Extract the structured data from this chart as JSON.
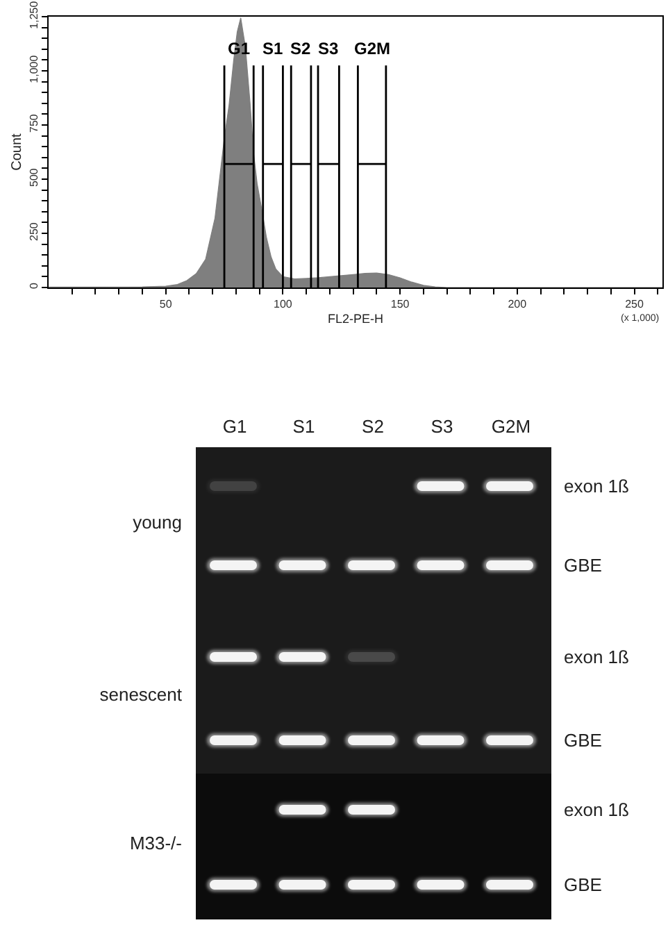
{
  "chart_data": [
    {
      "type": "area",
      "xlabel": "FL2-PE-H",
      "ylabel": "Count",
      "annotations": [
        "(x 1,000)"
      ],
      "xlim": [
        0,
        262
      ],
      "xticks": [
        {
          "value": 10,
          "label": null
        },
        {
          "value": 20,
          "label": null
        },
        {
          "value": 30,
          "label": null
        },
        {
          "value": 40,
          "label": null
        },
        50,
        {
          "value": 60,
          "label": null
        },
        {
          "value": 70,
          "label": null
        },
        {
          "value": 80,
          "label": null
        },
        {
          "value": 90,
          "label": null
        },
        100,
        {
          "value": 110,
          "label": null
        },
        {
          "value": 120,
          "label": null
        },
        {
          "value": 130,
          "label": null
        },
        {
          "value": 140,
          "label": null
        },
        150,
        {
          "value": 160,
          "label": null
        },
        {
          "value": 170,
          "label": null
        },
        {
          "value": 180,
          "label": null
        },
        {
          "value": 190,
          "label": null
        },
        200,
        {
          "value": 210,
          "label": null
        },
        {
          "value": 220,
          "label": null
        },
        {
          "value": 230,
          "label": null
        },
        {
          "value": 240,
          "label": null
        },
        250,
        {
          "value": 260,
          "label": null
        }
      ],
      "ylim": [
        0,
        1250
      ],
      "yticks": [
        0,
        {
          "value": 50,
          "label": null
        },
        {
          "value": 100,
          "label": null
        },
        {
          "value": 150,
          "label": null
        },
        {
          "value": 200,
          "label": null
        },
        250,
        {
          "value": 300,
          "label": null
        },
        {
          "value": 350,
          "label": null
        },
        {
          "value": 400,
          "label": null
        },
        {
          "value": 450,
          "label": null
        },
        500,
        {
          "value": 550,
          "label": null
        },
        {
          "value": 600,
          "label": null
        },
        {
          "value": 650,
          "label": null
        },
        {
          "value": 700,
          "label": null
        },
        750,
        {
          "value": 800,
          "label": null
        },
        {
          "value": 850,
          "label": null
        },
        {
          "value": 900,
          "label": null
        },
        {
          "value": 950,
          "label": null
        },
        {
          "value": 1000,
          "label": "1,000"
        },
        {
          "value": 1050,
          "label": null
        },
        {
          "value": 1100,
          "label": null
        },
        {
          "value": 1150,
          "label": null
        },
        {
          "value": 1200,
          "label": null
        },
        {
          "value": 1250,
          "label": "1,250"
        }
      ],
      "series": [
        {
          "type": "area",
          "color": "#7f7f7f",
          "x": [
            0,
            20,
            40,
            50,
            55,
            59,
            63,
            67,
            71,
            75,
            77,
            79,
            80.5,
            82,
            84,
            86,
            87.5,
            89,
            91,
            93,
            95,
            97,
            100,
            105,
            110,
            115,
            120,
            125,
            130,
            135,
            140,
            145,
            150,
            155,
            160,
            165,
            170,
            262
          ],
          "values": [
            2,
            2,
            3,
            6,
            14,
            32,
            64,
            130,
            320,
            690,
            840,
            1050,
            1180,
            1245,
            1110,
            850,
            620,
            480,
            360,
            230,
            140,
            85,
            50,
            40,
            42,
            45,
            50,
            55,
            60,
            65,
            67,
            60,
            45,
            25,
            10,
            3,
            0,
            0
          ]
        },
        {
          "type": "line",
          "name": "G1",
          "color": "#000000",
          "x": [
            75,
            75,
            75,
            87.5,
            87.5,
            87.5
          ],
          "values": [
            1025,
            0,
            570,
            570,
            0,
            1025
          ]
        },
        {
          "type": "line",
          "name": "S1",
          "color": "#000000",
          "x": [
            91.5,
            91.5,
            91.5,
            100,
            100,
            100
          ],
          "values": [
            1025,
            0,
            570,
            570,
            0,
            1025
          ]
        },
        {
          "type": "line",
          "name": "S2",
          "color": "#000000",
          "x": [
            103.5,
            103.5,
            103.5,
            112,
            112,
            112
          ],
          "values": [
            1025,
            0,
            570,
            570,
            0,
            1025
          ]
        },
        {
          "type": "line",
          "name": "S3",
          "color": "#000000",
          "x": [
            115,
            115,
            115,
            124,
            124,
            124
          ],
          "values": [
            1025,
            0,
            570,
            570,
            0,
            1025
          ]
        },
        {
          "type": "line",
          "name": "G2M",
          "color": "#000000",
          "x": [
            132,
            132,
            132,
            144,
            144,
            144
          ],
          "values": [
            1025,
            0,
            570,
            570,
            0,
            1025
          ]
        }
      ]
    },
    {
      "type": "other",
      "categories": [
        "G1",
        "S1",
        "S2",
        "S3",
        "G2M"
      ],
      "y_categories": [
        "young",
        "senescent",
        "M33-/-"
      ],
      "y2_categories": [
        "exon 1ß",
        "GBE",
        "exon 1ß",
        "GBE",
        "exon 1ß",
        "GBE"
      ]
    }
  ]
}
